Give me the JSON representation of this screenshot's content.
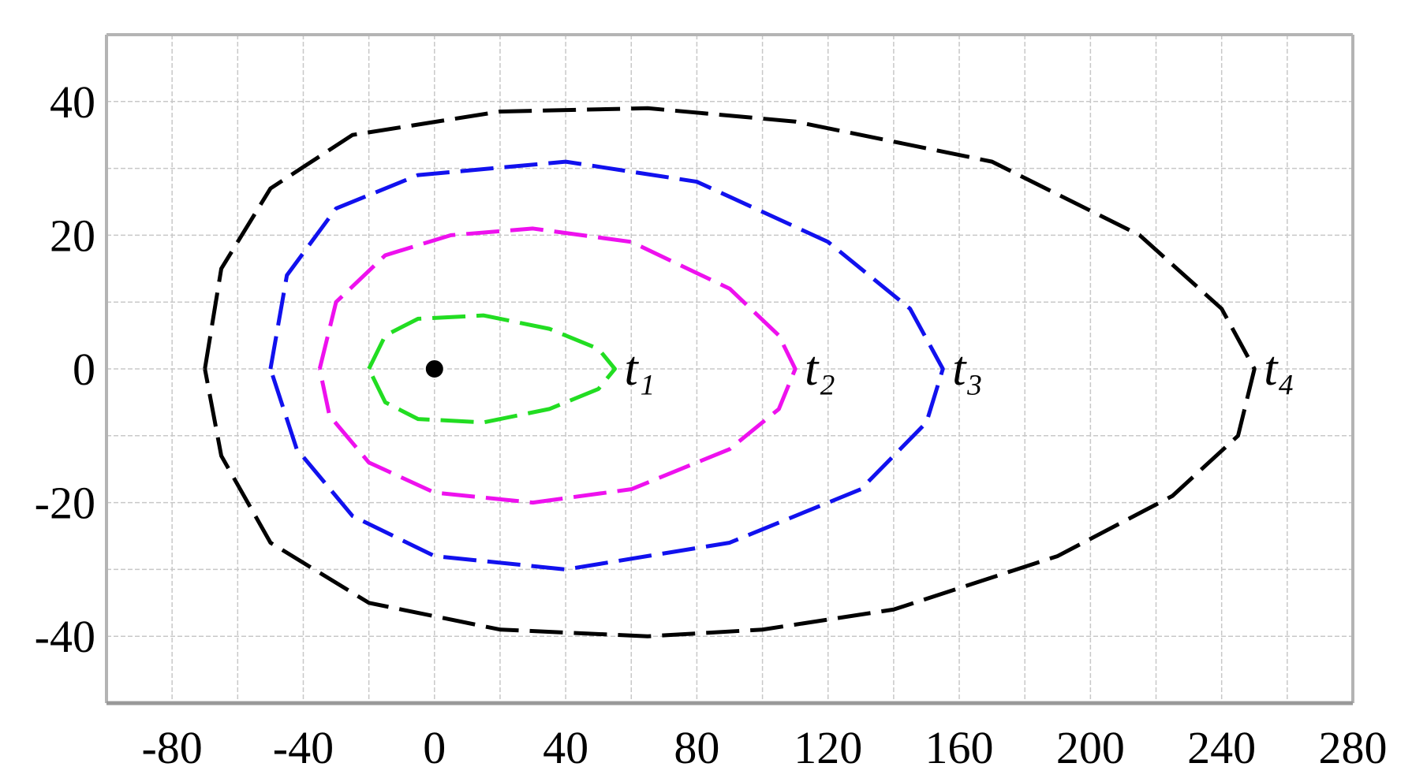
{
  "chart_data": {
    "type": "line",
    "xlim": [
      -100,
      280
    ],
    "ylim": [
      -50,
      50
    ],
    "xticks": [
      -80,
      -40,
      0,
      40,
      80,
      120,
      160,
      200,
      240,
      280
    ],
    "yticks": [
      -40,
      -20,
      0,
      20,
      40
    ],
    "grid": true,
    "series": [
      {
        "name": "t₁",
        "color": "#22dd22",
        "x": [
          -20,
          -15,
          -5,
          15,
          35,
          50,
          55,
          50,
          35,
          15,
          -5,
          -15,
          -20
        ],
        "values": [
          0,
          5,
          7.5,
          8,
          6,
          3,
          0,
          -3,
          -6,
          -8,
          -7.5,
          -5,
          0
        ]
      },
      {
        "name": "t₂",
        "color": "#ee11ee",
        "x": [
          -35,
          -30,
          -15,
          5,
          30,
          60,
          90,
          105,
          110,
          105,
          90,
          60,
          30,
          0,
          -20,
          -32,
          -35
        ],
        "values": [
          0,
          10,
          17,
          20,
          21,
          19,
          12,
          5,
          0,
          -6,
          -12,
          -18,
          -20,
          -18.5,
          -14,
          -7,
          0
        ]
      },
      {
        "name": "t₃",
        "color": "#1111ee",
        "x": [
          -50,
          -45,
          -30,
          -5,
          40,
          80,
          120,
          145,
          155,
          150,
          130,
          90,
          40,
          0,
          -25,
          -42,
          -50
        ],
        "values": [
          0,
          14,
          24,
          29,
          31,
          28,
          19,
          9,
          0,
          -8,
          -18,
          -26,
          -30,
          -28,
          -22,
          -12,
          0
        ]
      },
      {
        "name": "t₄",
        "color": "#000000",
        "x": [
          -70,
          -65,
          -50,
          -25,
          20,
          65,
          110,
          170,
          215,
          240,
          250,
          245,
          225,
          190,
          140,
          100,
          65,
          20,
          -20,
          -50,
          -65,
          -70
        ],
        "values": [
          0,
          15,
          27,
          35,
          38.5,
          39,
          37,
          31,
          20,
          9,
          0,
          -10,
          -19,
          -28,
          -36,
          -39,
          -40,
          -39,
          -35,
          -26,
          -13,
          0
        ]
      }
    ],
    "marker": {
      "x": 0,
      "y": 0,
      "color": "#000000"
    }
  }
}
